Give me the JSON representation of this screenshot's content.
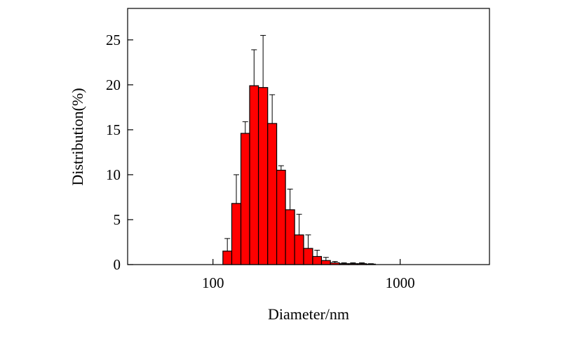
{
  "chart_data": {
    "type": "bar",
    "xlabel": "Diameter/nm",
    "ylabel": "Distribution(%)",
    "x_scale": "log",
    "xlim": [
      35,
      3000
    ],
    "ylim": [
      0,
      28.5
    ],
    "x_ticks": [
      100,
      1000
    ],
    "x_tick_labels": [
      "100",
      "1000"
    ],
    "y_ticks": [
      0,
      5,
      10,
      15,
      20,
      25
    ],
    "y_tick_labels": [
      "0",
      "5",
      "10",
      "15",
      "20",
      "25"
    ],
    "bar_color": "#ff0000",
    "bin_edges": [
      113,
      126,
      141,
      157,
      175,
      196,
      219,
      244,
      273,
      305,
      341,
      380,
      424,
      474,
      530,
      591,
      660,
      737
    ],
    "values": [
      1.5,
      6.8,
      14.6,
      19.9,
      19.7,
      15.7,
      10.5,
      6.1,
      3.3,
      1.8,
      0.9,
      0.45,
      0.2,
      0.1,
      0.1,
      0.1,
      0.05
    ],
    "errors": [
      1.4,
      3.2,
      1.3,
      4.0,
      5.8,
      3.2,
      0.5,
      2.3,
      2.3,
      1.5,
      0.7,
      0.35,
      0.15,
      0.1,
      0.1,
      0.1,
      0.05
    ],
    "grid": false
  }
}
